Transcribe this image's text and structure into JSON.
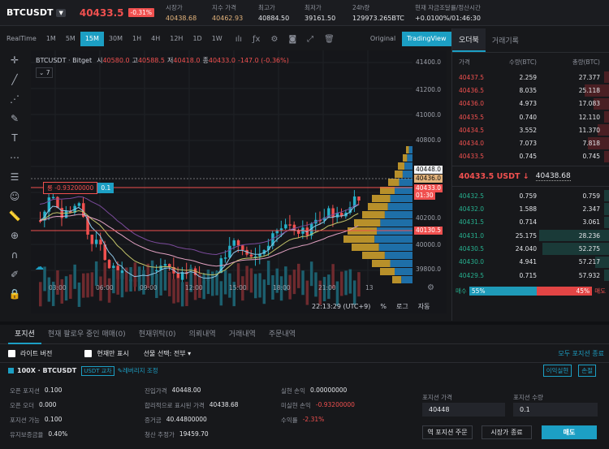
{
  "header": {
    "symbol": "BTCUSDT",
    "price": "40433.5",
    "change": "-0.31%",
    "stats": [
      {
        "k": "시장가",
        "v": "40438.68",
        "c": "#e3b37b"
      },
      {
        "k": "지수 가격",
        "v": "40462.93",
        "c": "#e3b37b"
      },
      {
        "k": "최고가",
        "v": "40884.50",
        "c": "#e4e6ea"
      },
      {
        "k": "최저가",
        "v": "39161.50",
        "c": "#e4e6ea"
      },
      {
        "k": "24h량",
        "v": "129973.265BTC",
        "c": "#e4e6ea"
      },
      {
        "k": "현재 자금조달률/정산시간",
        "v": "+0.0100%/01:46:30",
        "c": "#e4e6ea"
      }
    ]
  },
  "toolbar": {
    "intervals": [
      "RealTime",
      "1M",
      "5M",
      "15M",
      "30M",
      "1H",
      "4H",
      "12H",
      "1D",
      "1W"
    ],
    "active": "15M",
    "original": "Original",
    "tradingview": "TradingView"
  },
  "chart": {
    "legend_symbol": "BTCUSDT · Bitget",
    "ohlc_o_label": "시",
    "ohlc_o": "40580.0",
    "ohlc_h_label": "고",
    "ohlc_h": "40588.5",
    "ohlc_l_label": "저",
    "ohlc_l": "40418.0",
    "ohlc_c_label": "종",
    "ohlc_c": "40433.0",
    "ohlc_chg": "-147.0 (-0.36%)",
    "indicator_count": "7",
    "position_label": "롱 -0.93200000",
    "position_qty": "0.1",
    "y_ticks": [
      "41400.0",
      "41200.0",
      "41000.0",
      "40800.0",
      "40200.0",
      "40000.0",
      "39800.0"
    ],
    "price_tags": [
      {
        "v": "40448.0",
        "bg": "#f2f3f5",
        "c": "#111"
      },
      {
        "v": "40436.0",
        "bg": "#e3b37b",
        "c": "#111"
      },
      {
        "v": "40433.0",
        "bg": "#f0504f",
        "c": "#fff"
      },
      {
        "v": "01:30",
        "bg": "#f0504f",
        "c": "#fff"
      },
      {
        "v": "40130.5",
        "bg": "#f0504f",
        "c": "#fff"
      }
    ],
    "x_ticks": [
      "03:00",
      "06:00",
      "09:00",
      "12:00",
      "15:00",
      "18:00",
      "21:00",
      "13"
    ],
    "time": "22:13:29 (UTC+9)",
    "pct": "%",
    "log": "로그",
    "auto": "자동"
  },
  "orderbook": {
    "tabs": [
      "오더북",
      "거래기록"
    ],
    "headers": [
      "가격",
      "수량(BTC)",
      "총량(BTC)"
    ],
    "asks": [
      [
        "40437.5",
        "2.259",
        "27.377",
        0.05
      ],
      [
        "40436.5",
        "8.035",
        "25.118",
        0.35
      ],
      [
        "40436.0",
        "4.973",
        "17.083",
        0.22
      ],
      [
        "40435.5",
        "0.740",
        "12.110",
        0.04
      ],
      [
        "40434.5",
        "3.552",
        "11.370",
        0.16
      ],
      [
        "40434.0",
        "7.073",
        "7.818",
        0.3
      ],
      [
        "40433.5",
        "0.745",
        "0.745",
        0.03
      ]
    ],
    "mid_price": "40433.5 USDT ↓",
    "mid_mark": "40438.68",
    "bids": [
      [
        "40432.5",
        "0.759",
        "0.759",
        0.03
      ],
      [
        "40432.0",
        "1.588",
        "2.347",
        0.07
      ],
      [
        "40431.5",
        "0.714",
        "3.061",
        0.03
      ],
      [
        "40431.0",
        "25.175",
        "28.236",
        1.0
      ],
      [
        "40430.5",
        "24.040",
        "52.275",
        0.95
      ],
      [
        "40430.0",
        "4.941",
        "57.217",
        0.2
      ],
      [
        "40429.5",
        "0.715",
        "57.932",
        0.03
      ]
    ],
    "buy_label": "매수",
    "buy_pct": "55%",
    "sell_pct": "45%",
    "sell_label": "매도",
    "buy_ratio": 0.55
  },
  "bottom": {
    "tabs": [
      "포지션",
      "현재 팔로우 중인 매매(0)",
      "현재위탁(0)",
      "의뢰내역",
      "거래내역",
      "주문내역"
    ],
    "lite_label": "라이트 버전",
    "current_only_label": "현재만 표시",
    "futures_select": "선물 선택: 전부",
    "close_all": "모두 포지션 종료",
    "leverage": "100X · BTCUSDT",
    "badge": "USDT 교차",
    "adjust": "레버리지 조정",
    "profit_loss": "이익실현",
    "stop_loss": "손절",
    "col1": [
      [
        "오픈 포지션",
        "0.100"
      ],
      [
        "오픈 오더",
        "0.000"
      ],
      [
        "포지션 가능",
        "0.100"
      ],
      [
        "유지보증금율",
        "0.40%"
      ]
    ],
    "col2": [
      [
        "진입가격",
        "40448.00"
      ],
      [
        "합리적으로 표시된 가격",
        "40438.68"
      ],
      [
        "증거금",
        "40.44800000"
      ],
      [
        "청산 추정가",
        "19459.70"
      ]
    ],
    "col3": [
      [
        "실현 손익",
        "0.00000000"
      ],
      [
        "미실현 손익",
        "-0.93200000"
      ],
      [
        "수익률",
        "-2.31%"
      ]
    ],
    "pos_price_label": "포지션 가격",
    "pos_price": "40448",
    "pos_qty_label": "포지션 수량",
    "pos_qty": "0.1",
    "btn_reverse": "역 포지션 주문",
    "btn_market_close": "시장가 종료",
    "btn_sell": "매도"
  }
}
